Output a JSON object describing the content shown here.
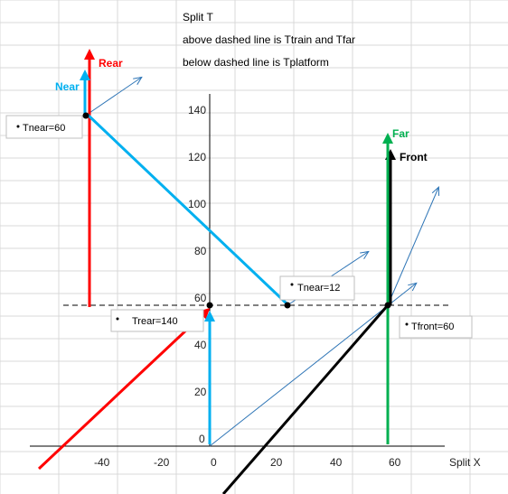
{
  "header": {
    "line1": "Split T",
    "line2": "above dashed line is Ttrain and Tfar",
    "line3": "below dashed line is Tplatform"
  },
  "axes": {
    "x_label": "Split X",
    "x_ticks": [
      "-40",
      "-20",
      "0",
      "20",
      "40",
      "60"
    ],
    "y_ticks": [
      "0",
      "20",
      "40",
      "60",
      "80",
      "100",
      "120",
      "140"
    ]
  },
  "colors": {
    "rear": "#ff0000",
    "near": "#00b0f0",
    "far": "#00b050",
    "front": "#000000",
    "light_ray": "#2e75b6"
  },
  "labels": {
    "rear": "Rear",
    "near": "Near",
    "far": "Far",
    "front": "Front"
  },
  "callouts": {
    "tnear_60": "Tnear=60",
    "tnear_12": "Tnear=12",
    "trear_140": "Trear=140",
    "tfront_60": "Tfront=60"
  }
}
